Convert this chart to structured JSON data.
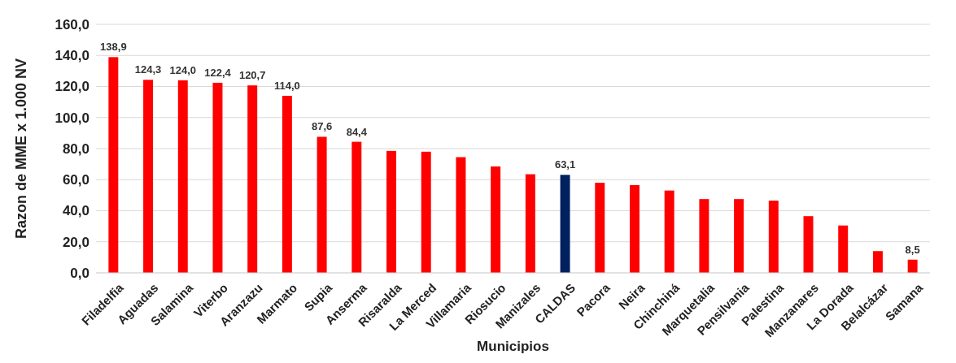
{
  "chart_data": {
    "type": "bar",
    "xlabel": "Municipios",
    "ylabel": "Razon de MME x 1.000 NV",
    "categories": [
      "Filadelfia",
      "Aguadas",
      "Salamina",
      "Viterbo",
      "Aranzazu",
      "Marmato",
      "Supia",
      "Anserma",
      "Risaralda",
      "La Merced",
      "Villamaria",
      "Riosucio",
      "Manizales",
      "CALDAS",
      "Pacora",
      "Neira",
      "Chinchiná",
      "Marquetalia",
      "Pensilvania",
      "Palestina",
      "Manzanares",
      "La Dorada",
      "Belalcázar",
      "Samana"
    ],
    "values": [
      138.9,
      124.3,
      124.0,
      122.4,
      120.7,
      114.0,
      87.6,
      84.4,
      78.5,
      78,
      74.5,
      68.5,
      63.5,
      63.1,
      58,
      56.5,
      53,
      47.5,
      47.5,
      46.5,
      36.5,
      30.5,
      14,
      8.5
    ],
    "colors": [
      "#ff0000",
      "#ff0000",
      "#ff0000",
      "#ff0000",
      "#ff0000",
      "#ff0000",
      "#ff0000",
      "#ff0000",
      "#ff0000",
      "#ff0000",
      "#ff0000",
      "#ff0000",
      "#ff0000",
      "#002060",
      "#ff0000",
      "#ff0000",
      "#ff0000",
      "#ff0000",
      "#ff0000",
      "#ff0000",
      "#ff0000",
      "#ff0000",
      "#ff0000",
      "#ff0000"
    ],
    "value_labels": [
      "138,9",
      "124,3",
      "124,0",
      "122,4",
      "120,7",
      "114,0",
      "87,6",
      "84,4",
      null,
      null,
      null,
      null,
      null,
      "63,1",
      null,
      null,
      null,
      null,
      null,
      null,
      null,
      null,
      null,
      "8,5"
    ],
    "ylim": [
      0,
      160
    ],
    "yticks": [
      {
        "value": 0,
        "label": "0,0"
      },
      {
        "value": 20,
        "label": "20,0"
      },
      {
        "value": 40,
        "label": "40,0"
      },
      {
        "value": 60,
        "label": "60,0"
      },
      {
        "value": 80,
        "label": "80,0"
      },
      {
        "value": 100,
        "label": "100,0"
      },
      {
        "value": 120,
        "label": "120,0"
      },
      {
        "value": 140,
        "label": "140,0"
      },
      {
        "value": 160,
        "label": "160,0"
      }
    ],
    "grid": "y"
  }
}
